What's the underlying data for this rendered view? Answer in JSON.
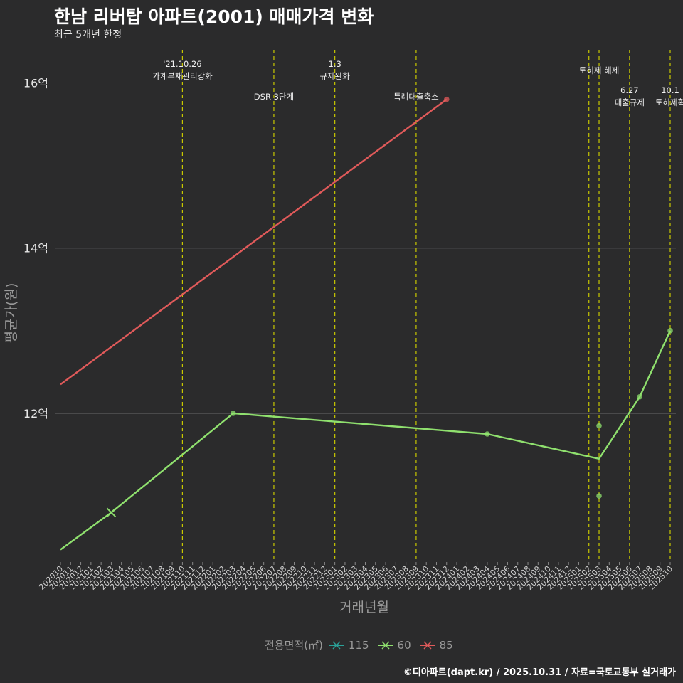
{
  "title": "한남 리버탑 아파트(2001) 매매가격 변화",
  "subtitle": "최근 5개년 한정",
  "caption": "©디아파트(dapt.kr) / 2025.10.31 / 자료=국토교통부 실거래가",
  "colors": {
    "background": "#2b2b2c",
    "grid": "#6a6a6a",
    "vline": "#c8c800",
    "series_115": "#2aa198",
    "series_60": "#8fe06e",
    "series_85": "#e05a5a"
  },
  "legend": {
    "title": "전용면적(㎡)",
    "items": [
      {
        "label": "115",
        "color": "#2aa198"
      },
      {
        "label": "60",
        "color": "#8fe06e"
      },
      {
        "label": "85",
        "color": "#e05a5a"
      }
    ]
  },
  "chart_data": {
    "type": "line",
    "title": "한남 리버탑 아파트(2001) 매매가격 변화",
    "subtitle": "최근 5개년 한정",
    "xlabel": "거래년월",
    "ylabel": "평균가(원)",
    "ylim": [
      10.2,
      16.4
    ],
    "yticks": [
      {
        "value": 12,
        "label": "12억"
      },
      {
        "value": 14,
        "label": "14억"
      },
      {
        "value": 16,
        "label": "16억"
      }
    ],
    "categories": [
      "202010",
      "202011",
      "202012",
      "202101",
      "202102",
      "202103",
      "202104",
      "202105",
      "202106",
      "202107",
      "202108",
      "202109",
      "202110",
      "202111",
      "202112",
      "202201",
      "202202",
      "202203",
      "202204",
      "202205",
      "202206",
      "202207",
      "202208",
      "202209",
      "202210",
      "202211",
      "202212",
      "202301",
      "202302",
      "202303",
      "202304",
      "202305",
      "202306",
      "202307",
      "202308",
      "202309",
      "202310",
      "202311",
      "202312",
      "202401",
      "202402",
      "202403",
      "202404",
      "202405",
      "202406",
      "202407",
      "202408",
      "202409",
      "202410",
      "202411",
      "202412",
      "202501",
      "202502",
      "202503",
      "202504",
      "202505",
      "202506",
      "202507",
      "202508",
      "202509",
      "202510"
    ],
    "series": [
      {
        "name": "60",
        "color": "#8fe06e",
        "line": [
          {
            "x": "202010",
            "y": 10.35
          },
          {
            "x": "202103",
            "y": 10.8
          },
          {
            "x": "202203",
            "y": 12.0
          },
          {
            "x": "202404",
            "y": 11.75
          },
          {
            "x": "202503",
            "y": 11.45
          },
          {
            "x": "202507",
            "y": 12.2
          },
          {
            "x": "202510",
            "y": 13.0
          }
        ],
        "points": [
          {
            "x": "202103",
            "y": 10.8,
            "shape": "x"
          },
          {
            "x": "202203",
            "y": 12.0,
            "shape": "dot"
          },
          {
            "x": "202404",
            "y": 11.75,
            "shape": "dot"
          },
          {
            "x": "202503",
            "y": 11.85,
            "shape": "dot"
          },
          {
            "x": "202503",
            "y": 11.0,
            "shape": "dot"
          },
          {
            "x": "202507",
            "y": 12.2,
            "shape": "dot"
          },
          {
            "x": "202510",
            "y": 13.0,
            "shape": "dot"
          }
        ]
      },
      {
        "name": "85",
        "color": "#e05a5a",
        "line": [
          {
            "x": "202010",
            "y": 12.35
          },
          {
            "x": "202312",
            "y": 15.8
          }
        ],
        "points": [
          {
            "x": "202312",
            "y": 15.8,
            "shape": "dot"
          }
        ]
      },
      {
        "name": "115",
        "color": "#2aa198",
        "line": [],
        "points": []
      }
    ],
    "annotations": [
      {
        "x": "202110",
        "lines": [
          "'21.10.26",
          "가계부채관리강화"
        ],
        "row": "high"
      },
      {
        "x": "202207",
        "lines": [
          "DSR 3단계"
        ],
        "row": "low"
      },
      {
        "x": "202301",
        "lines": [
          "1.3",
          "규제완화"
        ],
        "row": "high"
      },
      {
        "x": "202309",
        "lines": [
          "특례대출축소"
        ],
        "row": "low"
      },
      {
        "x": "202502",
        "lines": [],
        "row": "none"
      },
      {
        "x": "202503",
        "lines": [
          "토허제 해제"
        ],
        "row": "mid"
      },
      {
        "x": "202506",
        "lines": [
          "6.27",
          "대출규제"
        ],
        "row": "low2"
      },
      {
        "x": "202510",
        "lines": [
          "10.1",
          "토허제확"
        ],
        "row": "low2"
      }
    ]
  }
}
